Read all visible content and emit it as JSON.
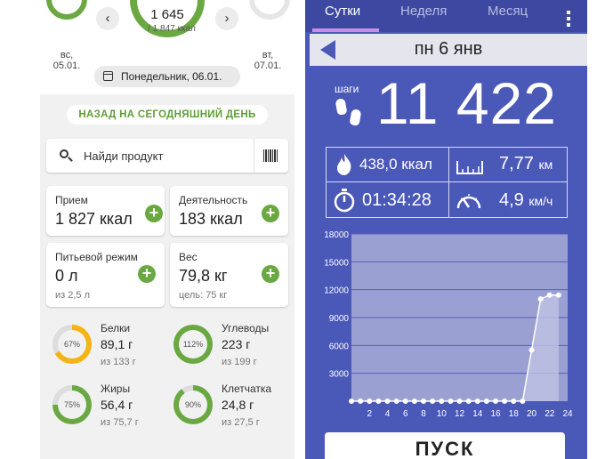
{
  "left": {
    "days": [
      {
        "weekday": "вс,",
        "date": "05.01."
      },
      {
        "weekday": "вт,",
        "date": "07.01."
      }
    ],
    "today_kcal": "1 645",
    "today_goal": "/ 1 847 ккал",
    "prev_arrow": "‹",
    "next_arrow": "›",
    "date_label": "Понедельник, 06.01.",
    "back_to_today": "НАЗАД НА СЕГОДНЯШНИЙ ДЕНЬ",
    "search_placeholder": "Найди продукт",
    "cards": [
      {
        "title": "Прием",
        "value": "1 827 ккал",
        "sub": ""
      },
      {
        "title": "Деятельность",
        "value": "183 ккал",
        "sub": ""
      },
      {
        "title": "Питьевой режим",
        "value": "0 л",
        "sub": "из 2,5 л"
      },
      {
        "title": "Вес",
        "value": "79,8 кг",
        "sub": "цель: 75 кг"
      }
    ],
    "plus_label": "+",
    "macros": [
      {
        "name": "Белки",
        "value": "89,1 г",
        "of": "из 133 г",
        "pct_label": "67%",
        "pct": 67,
        "color": "#f5b316"
      },
      {
        "name": "Углеводы",
        "value": "223 г",
        "of": "из 199 г",
        "pct_label": "112%",
        "pct": 100,
        "color": "#6aa842"
      },
      {
        "name": "Жиры",
        "value": "56,4 г",
        "of": "из 75,7 г",
        "pct_label": "75%",
        "pct": 75,
        "color": "#6aa842"
      },
      {
        "name": "Клетчатка",
        "value": "24,8 г",
        "of": "из 27,5 г",
        "pct_label": "90%",
        "pct": 90,
        "color": "#6aa842"
      }
    ],
    "colors": {
      "accent": "#6aa842",
      "warn": "#f5b316"
    }
  },
  "right": {
    "tabs": [
      "Сутки",
      "Неделя",
      "Месяц"
    ],
    "day_title": "пн 6 янв",
    "steps_label": "шаги",
    "steps": "11 422",
    "calories": "438,0 ккал",
    "distance_value": "7,77",
    "distance_unit": "км",
    "duration": "01:34:28",
    "speed_value": "4,9",
    "speed_unit": "км/ч",
    "icons": [
      "footprints-icon",
      "flame-icon",
      "ruler-icon",
      "stopwatch-icon",
      "speedometer-icon",
      "back-arrow-icon",
      "overflow-menu-icon"
    ],
    "start_button": "ПУСК",
    "colors": {
      "background": "#4a58b8",
      "tab_indicator": "#c78ee6"
    }
  },
  "chart_data": {
    "type": "area",
    "x": [
      0,
      1,
      2,
      3,
      4,
      5,
      6,
      7,
      8,
      9,
      10,
      11,
      12,
      13,
      14,
      15,
      16,
      17,
      18,
      19,
      20,
      21,
      22,
      23
    ],
    "values": [
      0,
      0,
      0,
      0,
      0,
      0,
      0,
      0,
      0,
      0,
      0,
      0,
      0,
      0,
      0,
      0,
      0,
      0,
      0,
      0,
      5500,
      11000,
      11422,
      11422
    ],
    "xticks": [
      "2",
      "4",
      "6",
      "8",
      "10",
      "12",
      "14",
      "16",
      "18",
      "20",
      "22",
      "24"
    ],
    "yticks": [
      "3000",
      "6000",
      "9000",
      "12000",
      "15000",
      "18000"
    ],
    "ylim": [
      0,
      18000
    ],
    "xlim": [
      0,
      24
    ],
    "grid": true,
    "legend": "none"
  }
}
